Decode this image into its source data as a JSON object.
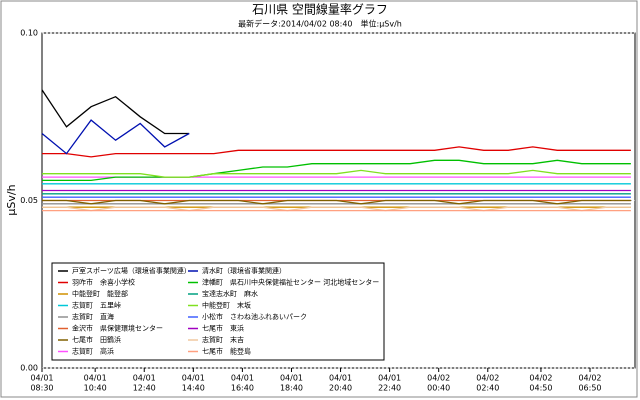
{
  "chart_data": {
    "type": "line",
    "title": "石川県 空間線量率グラフ",
    "subtitle": "最新データ:2014/04/02 08:40　単位:μSv/h",
    "y_label": "μSv/h",
    "ylim": [
      0,
      0.1
    ],
    "yticks": [
      {
        "value": 0,
        "label": "0.00"
      },
      {
        "value": 0.05,
        "label": "0.05"
      },
      {
        "value": 0.1,
        "label": "0.10"
      }
    ],
    "xlim": [
      "04/01 08:30",
      "04/02 08:40"
    ],
    "xticks": [
      [
        "04/01",
        "08:30"
      ],
      [
        "04/01",
        "10:40"
      ],
      [
        "04/01",
        "12:40"
      ],
      [
        "04/01",
        "14:40"
      ],
      [
        "04/01",
        "16:40"
      ],
      [
        "04/01",
        "18:40"
      ],
      [
        "04/01",
        "20:40"
      ],
      [
        "04/01",
        "22:40"
      ],
      [
        "04/02",
        "00:40"
      ],
      [
        "04/02",
        "02:40"
      ],
      [
        "04/02",
        "04:50"
      ],
      [
        "04/02",
        "06:50"
      ]
    ],
    "x": [
      "04/01 08:30",
      "04/01 09:30",
      "04/01 10:30",
      "04/01 11:30",
      "04/01 12:30",
      "04/01 13:30",
      "04/01 14:30",
      "04/01 15:30",
      "04/01 16:30",
      "04/01 17:30",
      "04/01 18:30",
      "04/01 19:30",
      "04/01 20:30",
      "04/01 21:30",
      "04/01 22:30",
      "04/01 23:30",
      "04/02 00:30",
      "04/02 01:30",
      "04/02 02:30",
      "04/02 03:30",
      "04/02 04:30",
      "04/02 05:30",
      "04/02 06:30",
      "04/02 07:30",
      "04/02 08:30"
    ],
    "series": [
      {
        "name": "戸室スポーツ広場（環境省事業関連）",
        "color": "#000000",
        "values": [
          0.083,
          0.072,
          0.078,
          0.081,
          0.075,
          0.07,
          0.07,
          null,
          null,
          null,
          null,
          null,
          null,
          null,
          null,
          null,
          null,
          null,
          null,
          null,
          null,
          null,
          null,
          null,
          null
        ]
      },
      {
        "name": "羽咋市　余喜小学校",
        "color": "#e00000",
        "values": [
          0.064,
          0.064,
          0.063,
          0.064,
          0.064,
          0.064,
          0.064,
          0.064,
          0.065,
          0.065,
          0.065,
          0.065,
          0.065,
          0.065,
          0.065,
          0.065,
          0.065,
          0.066,
          0.065,
          0.065,
          0.066,
          0.065,
          0.065,
          0.065,
          0.065
        ]
      },
      {
        "name": "中能登町　能登部",
        "color": "#d09000",
        "values": [
          0.048,
          0.048,
          0.048,
          0.048,
          0.048,
          0.048,
          0.048,
          0.048,
          0.048,
          0.048,
          0.048,
          0.048,
          0.048,
          0.048,
          0.048,
          0.048,
          0.048,
          0.048,
          0.048,
          0.048,
          0.048,
          0.048,
          0.048,
          0.048,
          0.048
        ]
      },
      {
        "name": "志賀町　五里峠",
        "color": "#00c8d8",
        "values": [
          0.055,
          0.055,
          0.055,
          0.055,
          0.055,
          0.055,
          0.055,
          0.055,
          0.055,
          0.055,
          0.055,
          0.055,
          0.055,
          0.055,
          0.055,
          0.055,
          0.055,
          0.055,
          0.055,
          0.055,
          0.055,
          0.055,
          0.055,
          0.055,
          0.055
        ]
      },
      {
        "name": "志賀町　直海",
        "color": "#909090",
        "values": [
          0.049,
          0.049,
          0.049,
          0.049,
          0.049,
          0.049,
          0.049,
          0.049,
          0.049,
          0.049,
          0.049,
          0.049,
          0.049,
          0.049,
          0.049,
          0.049,
          0.049,
          0.049,
          0.049,
          0.049,
          0.049,
          0.049,
          0.049,
          0.049,
          0.049
        ]
      },
      {
        "name": "金沢市　県保健環境センター",
        "color": "#e06030",
        "values": [
          0.05,
          0.05,
          0.05,
          0.05,
          0.05,
          0.05,
          0.05,
          0.05,
          0.05,
          0.05,
          0.05,
          0.05,
          0.05,
          0.05,
          0.05,
          0.05,
          0.05,
          0.05,
          0.05,
          0.05,
          0.05,
          0.05,
          0.05,
          0.05,
          0.05
        ]
      },
      {
        "name": "七尾市　田鶴浜",
        "color": "#806000",
        "values": [
          0.05,
          0.05,
          0.049,
          0.05,
          0.05,
          0.049,
          0.05,
          0.05,
          0.05,
          0.049,
          0.05,
          0.05,
          0.05,
          0.049,
          0.05,
          0.05,
          0.05,
          0.049,
          0.05,
          0.05,
          0.05,
          0.049,
          0.05,
          0.05,
          0.05
        ]
      },
      {
        "name": "志賀町　高浜",
        "color": "#ff50ff",
        "values": [
          0.057,
          0.057,
          0.057,
          0.057,
          0.057,
          0.057,
          0.057,
          0.057,
          0.057,
          0.057,
          0.057,
          0.057,
          0.057,
          0.057,
          0.057,
          0.057,
          0.057,
          0.057,
          0.057,
          0.057,
          0.057,
          0.057,
          0.057,
          0.057,
          0.057
        ]
      },
      {
        "name": "清水町（環境省事業関連）",
        "color": "#0010b0",
        "values": [
          0.07,
          0.064,
          0.074,
          0.068,
          0.073,
          0.066,
          0.07,
          null,
          null,
          null,
          null,
          null,
          null,
          null,
          null,
          null,
          null,
          null,
          null,
          null,
          null,
          null,
          null,
          null,
          null
        ]
      },
      {
        "name": "津幡町　県石川中央保健福祉センター 河北地域センター",
        "color": "#00c000",
        "values": [
          0.056,
          0.056,
          0.056,
          0.057,
          0.057,
          0.057,
          0.057,
          0.058,
          0.059,
          0.06,
          0.06,
          0.061,
          0.061,
          0.061,
          0.061,
          0.061,
          0.062,
          0.062,
          0.061,
          0.061,
          0.061,
          0.062,
          0.061,
          0.061,
          0.061
        ]
      },
      {
        "name": "宝達志水町　麻水",
        "color": "#00a080",
        "values": [
          0.052,
          0.052,
          0.052,
          0.052,
          0.052,
          0.052,
          0.052,
          0.052,
          0.052,
          0.052,
          0.052,
          0.052,
          0.052,
          0.052,
          0.052,
          0.052,
          0.052,
          0.052,
          0.052,
          0.052,
          0.052,
          0.052,
          0.052,
          0.052,
          0.052
        ]
      },
      {
        "name": "中能登町　末坂",
        "color": "#80e020",
        "values": [
          0.058,
          0.058,
          0.058,
          0.058,
          0.058,
          0.057,
          0.057,
          0.058,
          0.058,
          0.058,
          0.058,
          0.058,
          0.058,
          0.059,
          0.058,
          0.058,
          0.058,
          0.058,
          0.058,
          0.058,
          0.059,
          0.058,
          0.058,
          0.058,
          0.058
        ]
      },
      {
        "name": "小松市　さわね池ふれあいパーク",
        "color": "#4060ff",
        "values": [
          0.051,
          0.051,
          0.051,
          0.051,
          0.051,
          0.051,
          0.051,
          0.051,
          0.051,
          0.051,
          0.051,
          0.051,
          0.051,
          0.051,
          0.051,
          0.051,
          0.051,
          0.051,
          0.051,
          0.051,
          0.051,
          0.051,
          0.051,
          0.051,
          0.051
        ]
      },
      {
        "name": "七尾市　東浜",
        "color": "#a000c0",
        "values": [
          0.053,
          0.053,
          0.053,
          0.053,
          0.053,
          0.053,
          0.053,
          0.053,
          0.053,
          0.053,
          0.053,
          0.053,
          0.053,
          0.053,
          0.053,
          0.053,
          0.053,
          0.053,
          0.053,
          0.053,
          0.053,
          0.053,
          0.053,
          0.053,
          0.053
        ]
      },
      {
        "name": "志賀町　末吉",
        "color": "#f0c8a0",
        "values": [
          0.048,
          0.048,
          0.047,
          0.048,
          0.048,
          0.048,
          0.047,
          0.048,
          0.048,
          0.048,
          0.047,
          0.048,
          0.048,
          0.048,
          0.047,
          0.048,
          0.048,
          0.048,
          0.047,
          0.048,
          0.048,
          0.048,
          0.047,
          0.048,
          0.048
        ]
      },
      {
        "name": "七尾市　能登島",
        "color": "#ffa080",
        "values": [
          0.047,
          0.047,
          0.047,
          0.047,
          0.047,
          0.047,
          0.047,
          0.047,
          0.047,
          0.047,
          0.047,
          0.047,
          0.047,
          0.047,
          0.047,
          0.047,
          0.047,
          0.047,
          0.047,
          0.047,
          0.047,
          0.047,
          0.047,
          0.047,
          0.047
        ]
      }
    ]
  }
}
